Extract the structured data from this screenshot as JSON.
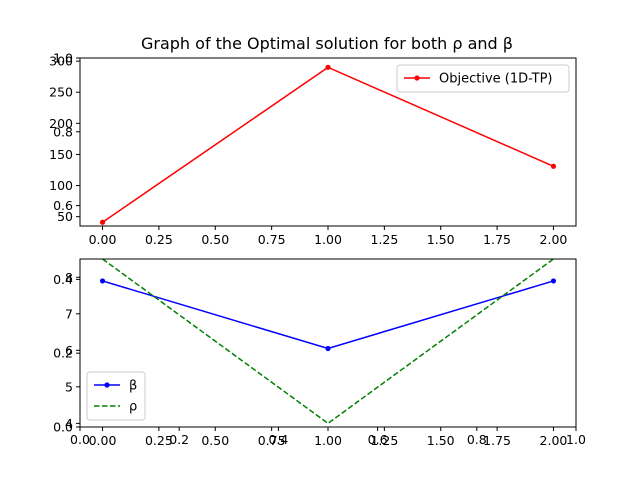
{
  "chart_data": {
    "title": "Graph of the Optimal solution for both ρ and β",
    "background_axes": {
      "xlim": [
        0.0,
        1.0
      ],
      "ylim": [
        0.0,
        1.0
      ],
      "xticks": [
        "0.0",
        "0.2",
        "0.4",
        "0.6",
        "0.8",
        "1.0"
      ],
      "yticks": [
        "0.0",
        "0.2",
        "0.4",
        "0.6",
        "0.8",
        "1.0"
      ]
    },
    "subplots": [
      {
        "type": "line",
        "xlim": [
          -0.1,
          2.1
        ],
        "ylim": [
          35,
          305
        ],
        "xticks": [
          "0.00",
          "0.25",
          "0.50",
          "0.75",
          "1.00",
          "1.25",
          "1.50",
          "1.75",
          "2.00"
        ],
        "yticks": [
          "50",
          "100",
          "150",
          "200",
          "250",
          "300"
        ],
        "legend_position": "upper right",
        "series": [
          {
            "name": "Objective (1D-TP)",
            "color": "#ff0000",
            "style": "solid",
            "marker": "dot",
            "x": [
              0,
              1,
              2
            ],
            "y": [
              41,
              290,
              131
            ]
          }
        ]
      },
      {
        "type": "line",
        "xlim": [
          -0.1,
          2.1
        ],
        "ylim": [
          3.9,
          8.5
        ],
        "xticks": [
          "0.00",
          "0.25",
          "0.50",
          "0.75",
          "1.00",
          "1.25",
          "1.50",
          "1.75",
          "2.00"
        ],
        "yticks": [
          "4",
          "5",
          "6",
          "7",
          "8"
        ],
        "legend_position": "lower left",
        "series": [
          {
            "name": "β",
            "color": "#0000ff",
            "style": "solid",
            "marker": "dot",
            "x": [
              0,
              1,
              2
            ],
            "y": [
              7.9,
              6.05,
              7.9
            ]
          },
          {
            "name": "ρ",
            "color": "#008000",
            "style": "dashed",
            "marker": "none",
            "x": [
              0,
              1,
              2
            ],
            "y": [
              8.5,
              4.0,
              8.5
            ]
          }
        ]
      }
    ]
  }
}
